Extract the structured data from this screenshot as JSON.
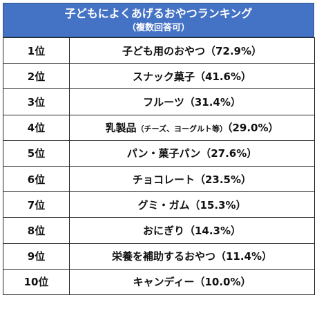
{
  "header": {
    "title": "子どもによくあげるおやつランキング",
    "subtitle": "（複数回答可）"
  },
  "rows": [
    {
      "rank": "1位",
      "item": "子ども用のおやつ",
      "note": "",
      "value": "（72.9%）"
    },
    {
      "rank": "2位",
      "item": "スナック菓子",
      "note": "",
      "value": "（41.6%）"
    },
    {
      "rank": "3位",
      "item": "フルーツ",
      "note": "",
      "value": "（31.4%）"
    },
    {
      "rank": "4位",
      "item": "乳製品",
      "note": "（チーズ、ヨーグルト等）",
      "value": "（29.0%）"
    },
    {
      "rank": "5位",
      "item": "パン・菓子パン",
      "note": "",
      "value": "（27.6%）"
    },
    {
      "rank": "6位",
      "item": "チョコレート",
      "note": "",
      "value": "（23.5%）"
    },
    {
      "rank": "7位",
      "item": "グミ・ガム",
      "note": "",
      "value": "（15.3%）"
    },
    {
      "rank": "8位",
      "item": "おにぎり",
      "note": "",
      "value": "（14.3%）"
    },
    {
      "rank": "9位",
      "item": "栄養を補助するおやつ",
      "note": "",
      "value": "（11.4%）"
    },
    {
      "rank": "10位",
      "item": "キャンディー",
      "note": "",
      "value": "（10.0%）"
    }
  ]
}
